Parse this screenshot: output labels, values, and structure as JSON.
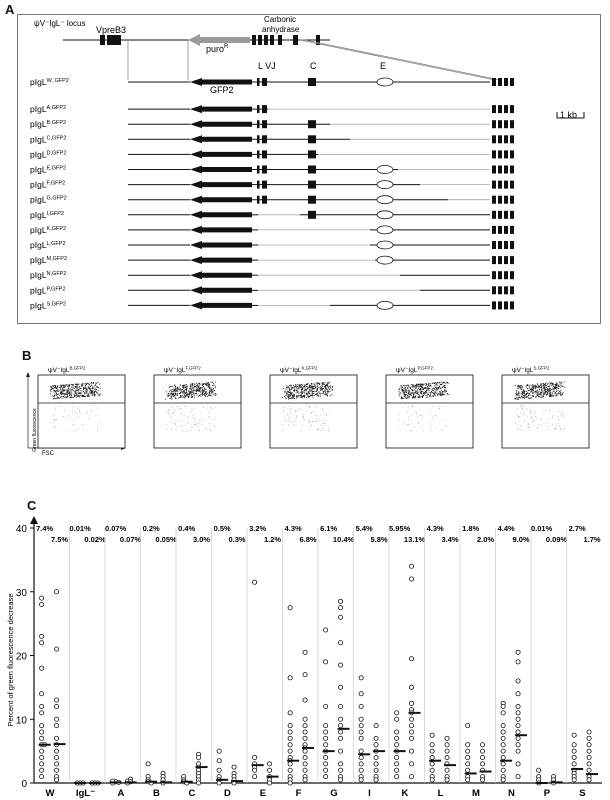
{
  "panelA": {
    "label": "A",
    "locus_title": "ψV⁻IgL⁻ locus",
    "vpreb3": "VpreB3",
    "carbonic": [
      "Carbonic",
      "anhydrase"
    ],
    "puro": "puro",
    "puro_sup": "R",
    "gfp2": "GFP2",
    "lvj": "L VJ",
    "c_label": "C",
    "e_label": "E",
    "scale": "1 kb",
    "constructs": [
      {
        "base": "pIgL",
        "sup": "W, GFP2"
      },
      {
        "base": "pIgL",
        "sup": "A,GFP2"
      },
      {
        "base": "pIgL",
        "sup": "B,GFP2"
      },
      {
        "base": "pIgL",
        "sup": "C,GFP2"
      },
      {
        "base": "pIgL",
        "sup": "D,GFP2"
      },
      {
        "base": "pIgL",
        "sup": "E,GFP2"
      },
      {
        "base": "pIgL",
        "sup": "F,GFP2"
      },
      {
        "base": "pIgL",
        "sup": "G,GFP2"
      },
      {
        "base": "pIgL",
        "sup": "I,GFP2"
      },
      {
        "base": "pIgL",
        "sup": "K,GFP2"
      },
      {
        "base": "pIgL",
        "sup": "L,GFP2"
      },
      {
        "base": "pIgL",
        "sup": "M,GFP2"
      },
      {
        "base": "pIgL",
        "sup": "N,GFP2"
      },
      {
        "base": "pIgL",
        "sup": "P,GFP2"
      },
      {
        "base": "pIgL",
        "sup": "S,GFP2"
      }
    ]
  },
  "panelB": {
    "label": "B",
    "ylabel": "Green fluorescence",
    "xlabel": "FSC",
    "plots": [
      {
        "base": "ψV⁻IgL",
        "sup": "B,GFP2"
      },
      {
        "base": "ψV⁻IgL",
        "sup": "F,GFP2"
      },
      {
        "base": "ψV⁻IgL",
        "sup": "K,GFP2"
      },
      {
        "base": "ψV⁻IgL",
        "sup": "P,GFP2"
      },
      {
        "base": "ψV⁻IgL",
        "sup": "S,GFP2"
      }
    ]
  },
  "chart_data": {
    "type": "scatter",
    "title": "",
    "ylabel": "Percent of green fluorescence decrease",
    "xlabel": "",
    "ylim": [
      0,
      40
    ],
    "yticks": [
      0,
      10,
      20,
      30,
      40
    ],
    "categories": [
      "W",
      "IgL",
      "A",
      "B",
      "C",
      "D",
      "E",
      "F",
      "G",
      "I",
      "K",
      "L",
      "M",
      "N",
      "P",
      "S"
    ],
    "categories_display": [
      "W",
      "IgL⁻",
      "A",
      "B",
      "C",
      "D",
      "E",
      "F",
      "G",
      "I",
      "K",
      "L",
      "M",
      "N",
      "P",
      "S"
    ],
    "groups": [
      {
        "name": "W",
        "left": {
          "label": "7.4%",
          "median": 6.0,
          "points": [
            29,
            28,
            23,
            22,
            18,
            14,
            12,
            11,
            9,
            8,
            7,
            6,
            6,
            5,
            4,
            3,
            2,
            1
          ]
        },
        "right": {
          "label": "7.5%",
          "median": 6.1,
          "points": [
            30,
            21,
            13,
            12,
            10,
            9,
            7,
            6,
            5,
            4,
            3,
            2,
            1,
            0.5
          ]
        }
      },
      {
        "name": "IgL",
        "left": {
          "label": "0.01%",
          "median": 0.0,
          "points": [
            0,
            0,
            0,
            0
          ]
        },
        "right": {
          "label": "0.02%",
          "median": 0.0,
          "points": [
            0,
            0,
            0,
            0
          ]
        }
      },
      {
        "name": "A",
        "left": {
          "label": "0.07%",
          "median": 0.1,
          "points": [
            0,
            0.2,
            0.3,
            0.1
          ]
        },
        "right": {
          "label": "0.07%",
          "median": 0.1,
          "points": [
            0,
            0.3,
            0.6,
            0.2
          ]
        }
      },
      {
        "name": "B",
        "left": {
          "label": "0.2%",
          "median": 0.2,
          "points": [
            3,
            1,
            0.5,
            0.2,
            0
          ]
        },
        "right": {
          "label": "0.05%",
          "median": 0.1,
          "points": [
            1.5,
            1,
            0.5,
            0
          ]
        }
      },
      {
        "name": "C",
        "left": {
          "label": "0.4%",
          "median": 0.2,
          "points": [
            1,
            0.5,
            0.2,
            0
          ]
        },
        "right": {
          "label": "3.0%",
          "median": 2.5,
          "points": [
            4.5,
            4,
            3,
            2.5,
            2,
            1.5,
            1,
            0.5,
            0
          ]
        }
      },
      {
        "name": "D",
        "left": {
          "label": "0.5%",
          "median": 0.5,
          "points": [
            5,
            3.5,
            2,
            1,
            0.5,
            0
          ]
        },
        "right": {
          "label": "0.3%",
          "median": 0.3,
          "points": [
            2.5,
            1.5,
            1,
            0.5,
            0
          ]
        }
      },
      {
        "name": "E",
        "left": {
          "label": "3.2%",
          "median": 2.8,
          "points": [
            31.5,
            4,
            3,
            2.5,
            2,
            1
          ]
        },
        "right": {
          "label": "1.2%",
          "median": 1.0,
          "points": [
            3,
            2,
            1,
            0.5,
            0
          ]
        }
      },
      {
        "name": "F",
        "left": {
          "label": "4.3%",
          "median": 3.5,
          "points": [
            27.5,
            16.5,
            11,
            9,
            8,
            7,
            6,
            5,
            4,
            3.5,
            3,
            2,
            1,
            0.5,
            0
          ]
        },
        "right": {
          "label": "6.8%",
          "median": 5.5,
          "points": [
            20.5,
            17,
            13,
            10,
            9,
            8,
            7,
            6,
            5.5,
            5,
            4,
            3,
            2,
            1,
            0.5
          ]
        }
      },
      {
        "name": "G",
        "left": {
          "label": "6.1%",
          "median": 5.0,
          "points": [
            24,
            19,
            12,
            9,
            8,
            7,
            6,
            5,
            4,
            3,
            2,
            1
          ]
        },
        "right": {
          "label": "10.4%",
          "median": 8.5,
          "points": [
            28.5,
            27.5,
            26,
            22,
            18.5,
            15,
            12,
            10,
            9,
            8,
            7,
            5,
            3,
            2,
            1,
            0.5
          ]
        }
      },
      {
        "name": "I",
        "left": {
          "label": "5.4%",
          "median": 4.5,
          "points": [
            16.5,
            14,
            12,
            10,
            9,
            8,
            7,
            5,
            4,
            3,
            2,
            1,
            0.5
          ]
        },
        "right": {
          "label": "5.8%",
          "median": 5.0,
          "points": [
            9,
            7,
            6,
            5,
            4,
            3,
            2,
            1,
            0.5
          ]
        }
      },
      {
        "name": "K",
        "left": {
          "label": "5.95%",
          "median": 5.0,
          "points": [
            11,
            10,
            8,
            7,
            6,
            5,
            4,
            3,
            2,
            1
          ]
        },
        "right": {
          "label": "13.1%",
          "median": 11.0,
          "points": [
            34,
            32,
            19.5,
            15,
            12.5,
            11.5,
            11,
            10,
            9,
            8,
            7,
            5,
            3,
            1
          ]
        }
      },
      {
        "name": "L",
        "left": {
          "label": "4.3%",
          "median": 3.5,
          "points": [
            7.5,
            6,
            5,
            4,
            3,
            2,
            1,
            0.5
          ]
        },
        "right": {
          "label": "3.4%",
          "median": 2.8,
          "points": [
            7,
            6,
            5,
            4,
            3,
            2,
            1,
            0.5
          ]
        }
      },
      {
        "name": "M",
        "left": {
          "label": "1.8%",
          "median": 1.5,
          "points": [
            9,
            6,
            5,
            4,
            3,
            2,
            1,
            0.5
          ]
        },
        "right": {
          "label": "2.0%",
          "median": 1.8,
          "points": [
            6,
            5,
            4,
            3,
            2,
            1,
            0.5
          ]
        }
      },
      {
        "name": "N",
        "left": {
          "label": "4.4%",
          "median": 3.5,
          "points": [
            12.5,
            12,
            11,
            9,
            8,
            7,
            6,
            5,
            4,
            3,
            2,
            1,
            0.5
          ]
        },
        "right": {
          "label": "9.0%",
          "median": 7.5,
          "points": [
            20.5,
            19,
            16,
            14,
            12,
            11,
            10,
            9,
            8,
            7,
            6,
            5,
            3,
            1
          ]
        }
      },
      {
        "name": "P",
        "left": {
          "label": "0.01%",
          "median": 0.0,
          "points": [
            2,
            1,
            0.5,
            0
          ]
        },
        "right": {
          "label": "0.09%",
          "median": 0.1,
          "points": [
            1,
            0.5,
            0
          ]
        }
      },
      {
        "name": "S",
        "left": {
          "label": "2.7%",
          "median": 2.2,
          "points": [
            7.5,
            6,
            5,
            4,
            3,
            2,
            1.5,
            1,
            0.5
          ]
        },
        "right": {
          "label": "1.7%",
          "median": 1.4,
          "points": [
            8,
            7,
            6,
            5,
            4,
            3,
            2,
            1,
            0.5
          ]
        }
      }
    ]
  },
  "panelC": {
    "label": "C"
  }
}
